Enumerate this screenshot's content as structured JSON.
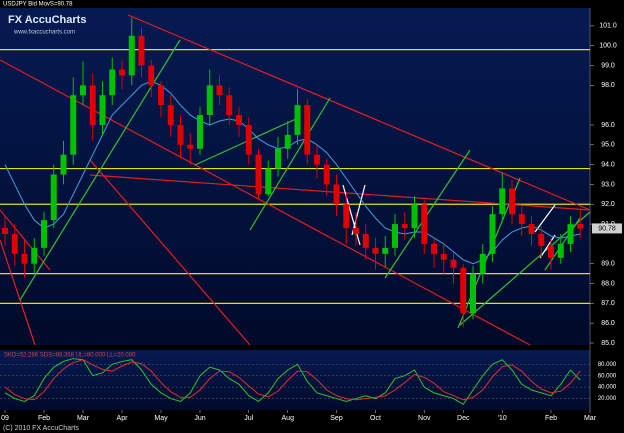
{
  "chart_data": [
    {
      "type": "candlestick",
      "title": "USDJPY Bid MovS=90.78",
      "logo": "FX AccuCharts",
      "url": "www.fxaccucharts.com",
      "footer": "(C) 2010 FX AccuCharts",
      "categories": [
        "09",
        null,
        null,
        null,
        "Feb",
        null,
        null,
        null,
        "Mar",
        null,
        null,
        null,
        "Apr",
        null,
        null,
        null,
        "May",
        null,
        null,
        null,
        "Jun",
        null,
        null,
        null,
        null,
        "Jul",
        null,
        null,
        null,
        "Aug",
        null,
        null,
        null,
        null,
        "Sep",
        null,
        null,
        null,
        "Oct",
        null,
        null,
        null,
        null,
        "Nov",
        null,
        null,
        null,
        "Dec",
        null,
        null,
        null,
        "'10",
        null,
        null,
        null,
        null,
        "Feb",
        null,
        null,
        null,
        "Mar"
      ],
      "open": [
        90.8,
        90.5,
        89.5,
        89.0,
        89.8,
        91.2,
        93.5,
        94.5,
        97.5,
        98.0,
        96.0,
        97.5,
        98.8,
        98.5,
        100.5,
        99.0,
        98.0,
        97.0,
        96.0,
        95.0,
        94.8,
        96.5,
        98.0,
        97.5,
        96.5,
        96.0,
        94.5,
        92.5,
        93.8,
        94.8,
        95.5,
        97.0,
        94.5,
        94.0,
        93.0,
        92.0,
        90.8,
        90.5,
        89.8,
        89.5,
        89.8,
        91.0,
        90.8,
        92.0,
        90.0,
        89.5,
        89.2,
        88.8,
        86.5,
        88.5,
        89.5,
        91.5,
        92.8,
        91.5,
        91.0,
        90.5,
        89.9,
        89.3,
        90.0,
        91.0,
        null
      ],
      "high": [
        91.4,
        91.0,
        90.2,
        90.3,
        91.6,
        94.0,
        95.2,
        98.4,
        99.2,
        98.6,
        98.2,
        99.4,
        99.3,
        101.4,
        100.9,
        99.3,
        98.2,
        97.5,
        96.5,
        95.6,
        96.9,
        98.8,
        98.5,
        97.9,
        96.9,
        96.4,
        94.8,
        94.2,
        95.4,
        96.2,
        97.8,
        97.3,
        95.0,
        94.3,
        93.5,
        92.5,
        91.6,
        91.0,
        90.3,
        90.4,
        91.5,
        91.6,
        92.4,
        92.2,
        90.3,
        90.0,
        89.6,
        89.0,
        88.9,
        90.0,
        91.9,
        93.6,
        93.2,
        91.9,
        91.4,
        90.9,
        90.3,
        90.5,
        91.4,
        91.8,
        null
      ],
      "low": [
        89.9,
        88.9,
        88.3,
        88.5,
        89.4,
        90.8,
        93.0,
        94.0,
        97.0,
        95.2,
        95.5,
        97.0,
        97.8,
        98.0,
        98.4,
        97.4,
        96.4,
        95.4,
        94.3,
        94.0,
        94.5,
        96.0,
        97.0,
        96.0,
        95.4,
        94.0,
        92.2,
        92.4,
        93.4,
        94.3,
        95.0,
        94.0,
        93.3,
        92.4,
        91.4,
        90.0,
        89.9,
        89.2,
        88.7,
        88.8,
        89.4,
        90.2,
        90.3,
        89.5,
        88.8,
        88.5,
        88.0,
        85.8,
        86.2,
        88.0,
        89.1,
        91.2,
        91.0,
        90.4,
        89.9,
        89.3,
        88.7,
        89.0,
        89.6,
        90.3,
        null
      ],
      "close": [
        90.5,
        89.5,
        89.0,
        89.8,
        91.2,
        93.5,
        94.5,
        97.5,
        98.0,
        96.0,
        97.5,
        98.8,
        98.5,
        100.5,
        99.0,
        98.0,
        97.0,
        96.0,
        95.0,
        94.8,
        96.5,
        98.0,
        97.5,
        96.5,
        96.0,
        94.5,
        92.5,
        93.8,
        94.8,
        95.5,
        97.0,
        94.5,
        94.0,
        93.0,
        92.0,
        90.8,
        90.5,
        89.8,
        89.5,
        89.8,
        91.0,
        90.8,
        92.0,
        90.0,
        89.5,
        89.2,
        88.8,
        86.5,
        88.5,
        89.5,
        91.5,
        92.8,
        91.5,
        91.0,
        90.5,
        89.9,
        89.3,
        90.0,
        91.0,
        90.78,
        null
      ],
      "up_color": "#00c000",
      "down_color": "#e00000",
      "moving_average": {
        "color": "#3aa0e0",
        "values": [
          94.0,
          93.0,
          92.0,
          91.2,
          90.8,
          91.0,
          91.5,
          92.5,
          93.5,
          94.5,
          95.5,
          96.5,
          97.0,
          97.5,
          98.0,
          98.2,
          98.0,
          97.6,
          97.0,
          96.5,
          96.2,
          96.0,
          96.2,
          96.3,
          96.2,
          95.8,
          95.3,
          95.0,
          94.8,
          94.9,
          95.2,
          95.3,
          95.0,
          94.6,
          94.0,
          93.3,
          92.6,
          91.9,
          91.3,
          90.8,
          90.6,
          90.5,
          90.6,
          90.6,
          90.3,
          90.0,
          89.6,
          89.2,
          89.0,
          89.2,
          89.6,
          90.2,
          90.6,
          90.8,
          90.9,
          90.7,
          90.4,
          90.3,
          90.4,
          90.5,
          null
        ]
      },
      "levels": [
        99.8,
        93.8,
        92.0,
        88.5,
        87.0
      ],
      "level_color": "#e8e000",
      "last_price": 90.78,
      "ylim": [
        84.9,
        101.9
      ],
      "yticks": [
        {
          "value": 101,
          "label": "101.0"
        },
        {
          "value": 100,
          "label": "100.0"
        },
        {
          "value": 99,
          "label": "99.0"
        },
        {
          "value": 98,
          "label": "98.0"
        },
        {
          "value": 96,
          "label": "96.0"
        },
        {
          "value": 95,
          "label": "95.0"
        },
        {
          "value": 94,
          "label": "94.0"
        },
        {
          "value": 93,
          "label": "93.0"
        },
        {
          "value": 92,
          "label": "92.0"
        },
        {
          "value": 91,
          "label": "91.0"
        },
        {
          "value": 89,
          "label": "89.0"
        },
        {
          "value": 88,
          "label": "88.0"
        },
        {
          "value": 87,
          "label": "87.0"
        },
        {
          "value": 86,
          "label": "86.0"
        },
        {
          "value": 85,
          "label": "85.0"
        }
      ]
    },
    {
      "type": "line",
      "title": "SKD=52.286 SDS=68.368 UL=80.000 LL=20.000",
      "series": [
        {
          "name": "SKD",
          "color": "#30c030",
          "values": [
            30,
            20,
            15,
            25,
            55,
            75,
            85,
            90,
            88,
            60,
            65,
            80,
            85,
            88,
            70,
            45,
            30,
            20,
            15,
            30,
            60,
            75,
            70,
            55,
            45,
            25,
            15,
            30,
            55,
            70,
            80,
            50,
            30,
            25,
            20,
            15,
            20,
            25,
            20,
            30,
            55,
            60,
            70,
            40,
            30,
            25,
            20,
            10,
            35,
            60,
            80,
            88,
            70,
            45,
            35,
            30,
            25,
            45,
            70,
            52.286,
            null
          ]
        },
        {
          "name": "SDS",
          "color": "#e03030",
          "values": [
            40,
            27,
            20,
            18,
            32,
            55,
            72,
            83,
            88,
            79,
            71,
            68,
            77,
            84,
            81,
            68,
            48,
            32,
            22,
            22,
            35,
            55,
            68,
            67,
            57,
            42,
            28,
            23,
            33,
            52,
            68,
            67,
            53,
            35,
            25,
            20,
            18,
            20,
            22,
            25,
            35,
            48,
            62,
            57,
            47,
            32,
            25,
            18,
            22,
            35,
            58,
            76,
            79,
            68,
            50,
            37,
            30,
            33,
            47,
            68.368,
            null
          ]
        }
      ],
      "ylim": [
        0,
        105
      ],
      "yticks": [
        {
          "value": 80,
          "label": "80.000"
        },
        {
          "value": 60,
          "label": "60.000"
        },
        {
          "value": 40,
          "label": "40.000"
        },
        {
          "value": 20,
          "label": "20.000"
        }
      ]
    }
  ]
}
